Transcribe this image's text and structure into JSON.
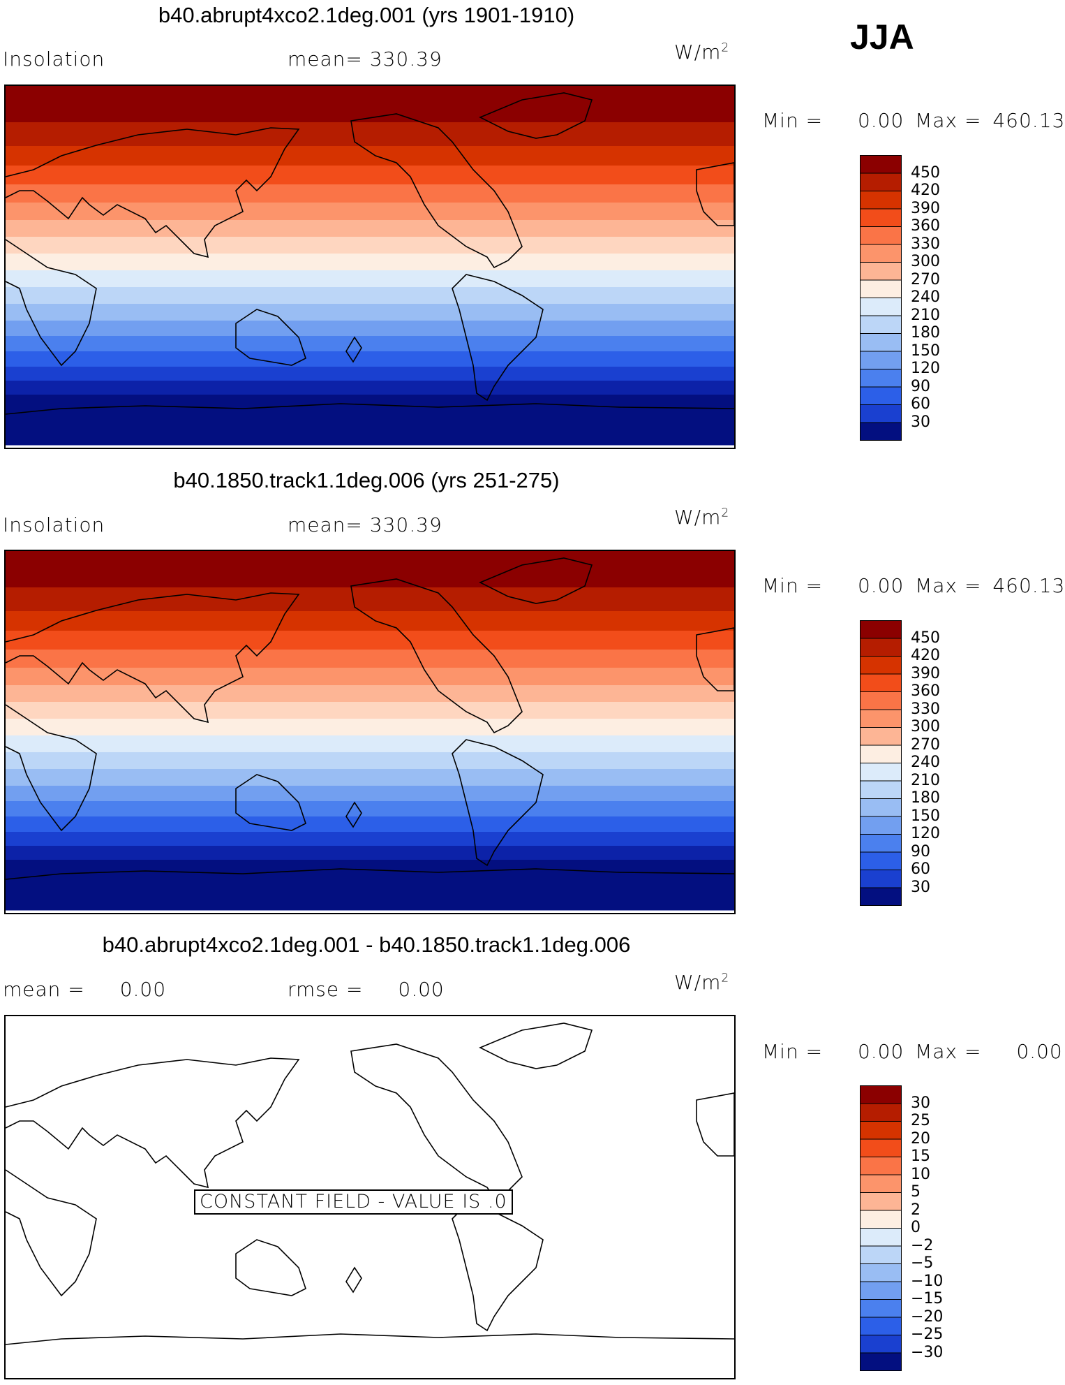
{
  "season": "JJA",
  "units": "W/m",
  "units_exp": "2",
  "panels": [
    {
      "title": "b40.abrupt4xco2.1deg.001 (yrs 1901-1910)",
      "left_label": "Insolation",
      "mid_label": "mean=",
      "mid_value": "330.39",
      "min_label": "Min =",
      "min_value": "0.00",
      "max_label": "Max =",
      "max_value": "460.13",
      "colorbar_labels": [
        "450",
        "420",
        "390",
        "360",
        "330",
        "300",
        "270",
        "240",
        "210",
        "180",
        "150",
        "120",
        "90",
        "60",
        "30"
      ]
    },
    {
      "title": "b40.1850.track1.1deg.006 (yrs 251-275)",
      "left_label": "Insolation",
      "mid_label": "mean=",
      "mid_value": "330.39",
      "min_label": "Min =",
      "min_value": "0.00",
      "max_label": "Max =",
      "max_value": "460.13",
      "colorbar_labels": [
        "450",
        "420",
        "390",
        "360",
        "330",
        "300",
        "270",
        "240",
        "210",
        "180",
        "150",
        "120",
        "90",
        "60",
        "30"
      ]
    },
    {
      "title": "b40.abrupt4xco2.1deg.001 - b40.1850.track1.1deg.006",
      "left_label": "mean =",
      "left_value": "0.00",
      "mid_label": "rmse =",
      "mid_value": "0.00",
      "min_label": "Min =",
      "min_value": "0.00",
      "max_label": "Max =",
      "max_value": "0.00",
      "constant_field": "CONSTANT FIELD - VALUE IS .0",
      "colorbar_labels": [
        "30",
        "25",
        "20",
        "15",
        "10",
        "5",
        "2",
        "0",
        "−2",
        "−5",
        "−10",
        "−15",
        "−20",
        "−25",
        "−30"
      ]
    }
  ],
  "colors": {
    "palette_top_to_bottom": [
      "#8b0000",
      "#b51d00",
      "#d63300",
      "#f24d1a",
      "#fa7447",
      "#fc946b",
      "#fdb595",
      "#fed6c0",
      "#fdeee2",
      "#dcebfa",
      "#bcd6f7",
      "#99bdf3",
      "#729ff0",
      "#4b80ee",
      "#2c5fe8",
      "#1a40d0",
      "#0c22a8",
      "#030f80"
    ],
    "colorbar_top_to_bottom": [
      "#8b0000",
      "#b51d00",
      "#d63300",
      "#f24d1a",
      "#fa7447",
      "#fc946b",
      "#fdb595",
      "#fdeee2",
      "#dcebfa",
      "#bcd6f7",
      "#99bdf3",
      "#729ff0",
      "#4b80ee",
      "#2c5fe8",
      "#1a40d0",
      "#030f80"
    ]
  }
}
